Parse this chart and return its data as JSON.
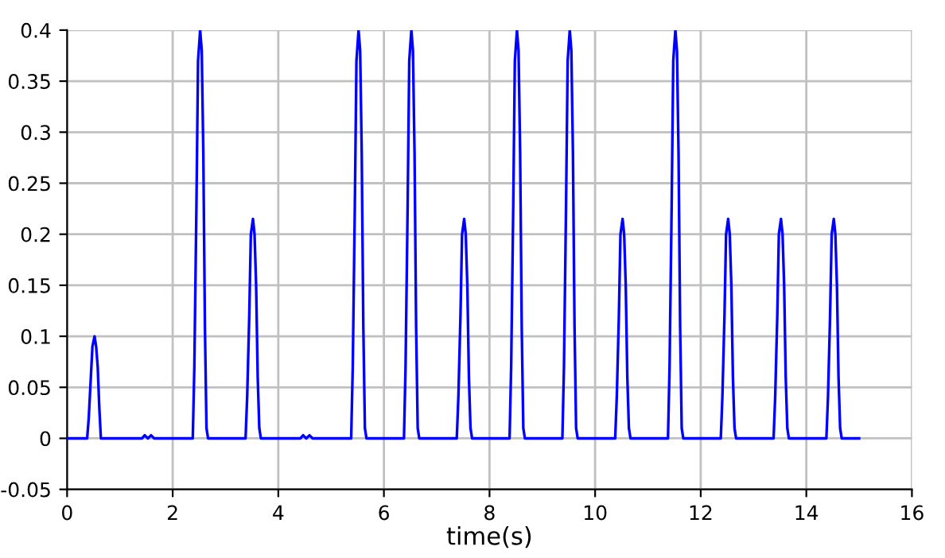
{
  "chart_data": {
    "type": "line",
    "xlabel": "time(s)",
    "series": [
      {
        "color": "#0000ff",
        "x": [
          0,
          0.38,
          0.41,
          0.45,
          0.48,
          0.52,
          0.55,
          0.58,
          0.61,
          0.64,
          0.67,
          1.42,
          1.47,
          1.53,
          1.59,
          1.65,
          2.38,
          2.41,
          2.45,
          2.48,
          2.52,
          2.55,
          2.58,
          2.61,
          2.64,
          2.67,
          3.38,
          3.41,
          3.45,
          3.48,
          3.52,
          3.55,
          3.58,
          3.61,
          3.64,
          3.67,
          4.42,
          4.47,
          4.53,
          4.59,
          4.65,
          5.38,
          5.41,
          5.45,
          5.48,
          5.52,
          5.55,
          5.58,
          5.61,
          5.64,
          5.67,
          6.38,
          6.41,
          6.45,
          6.48,
          6.52,
          6.55,
          6.58,
          6.61,
          6.64,
          6.67,
          7.38,
          7.41,
          7.45,
          7.48,
          7.52,
          7.55,
          7.58,
          7.61,
          7.64,
          7.67,
          8.38,
          8.41,
          8.45,
          8.48,
          8.52,
          8.55,
          8.58,
          8.61,
          8.64,
          8.67,
          9.38,
          9.41,
          9.45,
          9.48,
          9.52,
          9.55,
          9.58,
          9.61,
          9.64,
          9.67,
          10.38,
          10.41,
          10.45,
          10.48,
          10.52,
          10.55,
          10.58,
          10.61,
          10.64,
          10.67,
          11.38,
          11.41,
          11.45,
          11.48,
          11.52,
          11.55,
          11.58,
          11.61,
          11.64,
          11.67,
          12.38,
          12.41,
          12.45,
          12.48,
          12.52,
          12.55,
          12.58,
          12.61,
          12.64,
          12.67,
          13.38,
          13.41,
          13.45,
          13.48,
          13.52,
          13.55,
          13.58,
          13.61,
          13.64,
          13.67,
          14.38,
          14.41,
          14.45,
          14.48,
          14.52,
          14.55,
          14.58,
          14.61,
          14.64,
          14.67,
          15
        ],
        "values": [
          0,
          0,
          0.02,
          0.06,
          0.09,
          0.1,
          0.09,
          0.07,
          0.03,
          0,
          0,
          0,
          0.003,
          0,
          0.003,
          0,
          0,
          0.07,
          0.23,
          0.37,
          0.4,
          0.38,
          0.28,
          0.11,
          0.01,
          0,
          0,
          0.04,
          0.12,
          0.2,
          0.215,
          0.2,
          0.15,
          0.06,
          0.01,
          0,
          0,
          0.003,
          0,
          0.003,
          0,
          0,
          0.07,
          0.23,
          0.37,
          0.4,
          0.38,
          0.28,
          0.11,
          0.01,
          0,
          0,
          0.07,
          0.23,
          0.37,
          0.4,
          0.38,
          0.28,
          0.11,
          0.01,
          0,
          0,
          0.04,
          0.12,
          0.2,
          0.215,
          0.2,
          0.15,
          0.06,
          0.01,
          0,
          0,
          0.07,
          0.23,
          0.37,
          0.4,
          0.38,
          0.28,
          0.11,
          0.01,
          0,
          0,
          0.07,
          0.23,
          0.37,
          0.4,
          0.38,
          0.28,
          0.11,
          0.01,
          0,
          0,
          0.04,
          0.12,
          0.2,
          0.215,
          0.2,
          0.15,
          0.06,
          0.01,
          0,
          0,
          0.07,
          0.23,
          0.37,
          0.4,
          0.38,
          0.28,
          0.11,
          0.01,
          0,
          0,
          0.04,
          0.12,
          0.2,
          0.215,
          0.2,
          0.15,
          0.06,
          0.01,
          0,
          0,
          0.04,
          0.12,
          0.2,
          0.215,
          0.2,
          0.15,
          0.06,
          0.01,
          0,
          0,
          0.04,
          0.12,
          0.2,
          0.215,
          0.2,
          0.15,
          0.06,
          0.01,
          0,
          0
        ]
      }
    ],
    "xlim": [
      0,
      16
    ],
    "xticks": [
      0,
      2,
      4,
      6,
      8,
      10,
      12,
      14,
      16
    ],
    "ylim": [
      -0.05,
      0.4
    ],
    "yticks": [
      -0.05,
      0,
      0.05,
      0.1,
      0.15,
      0.2,
      0.25,
      0.3,
      0.35,
      0.4
    ],
    "grid": true,
    "marker": "none",
    "line_style": "solid"
  }
}
